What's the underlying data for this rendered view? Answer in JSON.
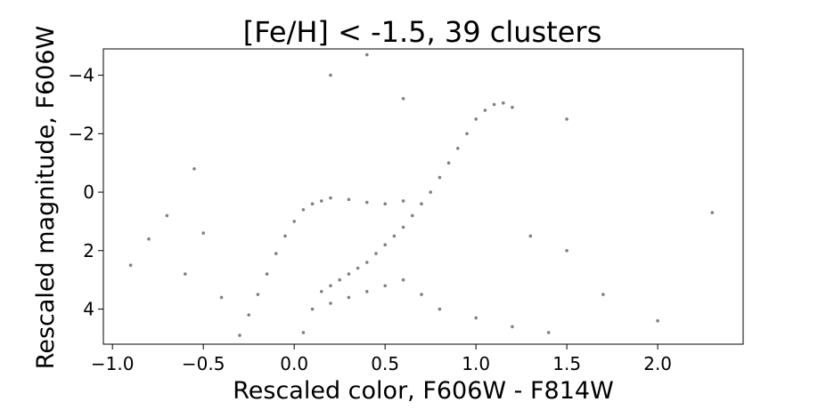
{
  "chart_data": {
    "type": "scatter",
    "title": "[Fe/H] < -1.5, 39 clusters",
    "xlabel": "Rescaled color, F606W - F814W",
    "ylabel": "Rescaled magnitude, F606W",
    "xlim": [
      -1.05,
      2.47
    ],
    "ylim": [
      5.2,
      -4.9
    ],
    "y_inverted": true,
    "x_ticks": [
      -1.0,
      -0.5,
      0.0,
      0.5,
      1.0,
      1.5,
      2.0
    ],
    "x_tick_labels": [
      "−1.0",
      "−0.5",
      "0.0",
      "0.5",
      "1.0",
      "1.5",
      "2.0"
    ],
    "y_ticks": [
      -4,
      -2,
      0,
      2,
      4
    ],
    "y_tick_labels": [
      "−4",
      "−2",
      "0",
      "2",
      "4"
    ],
    "grid": false,
    "marker_color": "#808080",
    "series": [
      {
        "points": [
          [
            0.05,
            4.8
          ],
          [
            0.1,
            4.0
          ],
          [
            0.15,
            3.4
          ],
          [
            0.2,
            3.2
          ],
          [
            0.25,
            3.0
          ],
          [
            0.3,
            2.8
          ],
          [
            0.35,
            2.6
          ],
          [
            0.4,
            2.4
          ],
          [
            0.45,
            2.1
          ],
          [
            0.5,
            1.8
          ],
          [
            0.55,
            1.5
          ],
          [
            0.6,
            1.2
          ],
          [
            0.65,
            0.8
          ],
          [
            0.7,
            0.4
          ],
          [
            0.75,
            0.0
          ],
          [
            0.8,
            -0.5
          ],
          [
            0.85,
            -1.0
          ],
          [
            0.9,
            -1.5
          ],
          [
            0.95,
            -2.0
          ],
          [
            1.0,
            -2.5
          ],
          [
            1.05,
            -2.8
          ],
          [
            1.1,
            -3.0
          ],
          [
            1.15,
            -3.05
          ],
          [
            1.2,
            -2.9
          ],
          [
            -0.3,
            4.9
          ],
          [
            -0.25,
            4.2
          ],
          [
            -0.2,
            3.5
          ],
          [
            -0.15,
            2.8
          ],
          [
            -0.1,
            2.1
          ],
          [
            -0.05,
            1.5
          ],
          [
            0.0,
            1.0
          ],
          [
            0.05,
            0.6
          ],
          [
            0.1,
            0.4
          ],
          [
            0.15,
            0.3
          ],
          [
            0.2,
            0.2
          ],
          [
            0.3,
            0.25
          ],
          [
            0.4,
            0.35
          ],
          [
            0.5,
            0.4
          ],
          [
            0.6,
            0.3
          ],
          [
            0.2,
            3.8
          ],
          [
            0.3,
            3.6
          ],
          [
            0.4,
            3.4
          ],
          [
            0.5,
            3.2
          ],
          [
            0.6,
            3.0
          ],
          [
            0.7,
            3.5
          ],
          [
            0.8,
            4.0
          ],
          [
            1.0,
            4.3
          ],
          [
            1.2,
            4.6
          ],
          [
            1.4,
            4.8
          ],
          [
            -0.9,
            2.5
          ],
          [
            -0.8,
            1.6
          ],
          [
            -0.6,
            2.8
          ],
          [
            -0.5,
            1.4
          ],
          [
            -0.4,
            3.6
          ],
          [
            1.3,
            1.5
          ],
          [
            1.5,
            2.0
          ],
          [
            1.7,
            3.5
          ],
          [
            2.0,
            4.4
          ],
          [
            2.3,
            0.7
          ],
          [
            -0.7,
            0.8
          ],
          [
            -0.55,
            -0.8
          ],
          [
            0.2,
            -4.0
          ],
          [
            0.4,
            -4.7
          ],
          [
            0.6,
            -3.2
          ],
          [
            1.5,
            -2.5
          ]
        ]
      }
    ]
  }
}
